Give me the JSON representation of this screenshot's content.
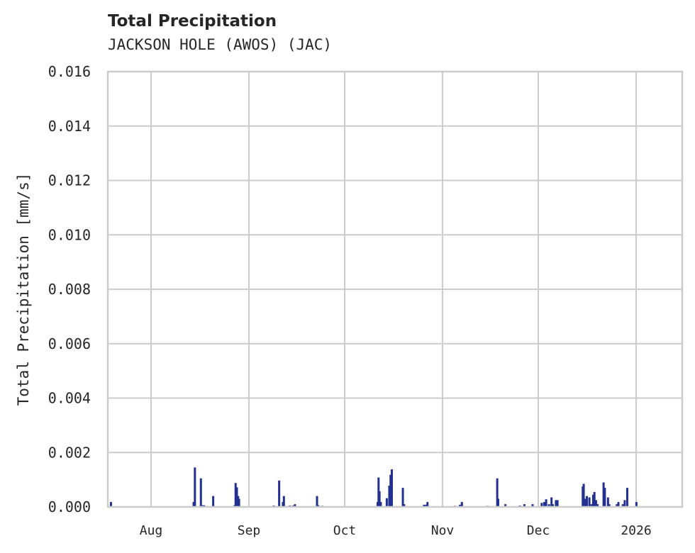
{
  "header": {
    "title": "Total Precipitation",
    "subtitle": "JACKSON HOLE (AWOS) (JAC)"
  },
  "chart_data": {
    "type": "bar",
    "title": "Total Precipitation",
    "subtitle": "JACKSON HOLE (AWOS) (JAC)",
    "xlabel": "",
    "ylabel": "Total Precipitation [mm/s]",
    "ylim": [
      0,
      0.016
    ],
    "yticks": [
      "0.000",
      "0.002",
      "0.004",
      "0.006",
      "0.008",
      "0.010",
      "0.012",
      "0.014",
      "0.016"
    ],
    "xticks": [
      "Aug",
      "Sep",
      "Oct",
      "Nov",
      "Dec",
      "2026"
    ],
    "grid": true,
    "legend": "none",
    "color": "#22318f",
    "x_unit": "days since Jul 18, 2025 (approx.)",
    "series": [
      {
        "name": "Total Precipitation",
        "points": [
          {
            "day": 1.0,
            "value": 0.00018
          },
          {
            "day": 27.2,
            "value": 0.00018
          },
          {
            "day": 27.6,
            "value": 0.00145
          },
          {
            "day": 29.5,
            "value": 0.00105
          },
          {
            "day": 30.0,
            "value": 6e-05
          },
          {
            "day": 30.5,
            "value": 6e-05
          },
          {
            "day": 33.4,
            "value": 0.0004
          },
          {
            "day": 40.2,
            "value": 6e-05
          },
          {
            "day": 40.5,
            "value": 0.00088
          },
          {
            "day": 40.9,
            "value": 0.00072
          },
          {
            "day": 41.3,
            "value": 0.0004
          },
          {
            "day": 41.6,
            "value": 0.0003
          },
          {
            "day": 52.6,
            "value": 5e-05
          },
          {
            "day": 54.3,
            "value": 0.00097
          },
          {
            "day": 55.5,
            "value": 0.00018
          },
          {
            "day": 55.8,
            "value": 0.0004
          },
          {
            "day": 57.7,
            "value": 5e-05
          },
          {
            "day": 58.7,
            "value": 5e-05
          },
          {
            "day": 59.3,
            "value": 0.0001
          },
          {
            "day": 66.3,
            "value": 0.0004
          },
          {
            "day": 66.7,
            "value": 6e-05
          },
          {
            "day": 68.0,
            "value": 4e-05
          },
          {
            "day": 85.5,
            "value": 0.00018
          },
          {
            "day": 85.8,
            "value": 0.00108
          },
          {
            "day": 86.1,
            "value": 0.00058
          },
          {
            "day": 86.5,
            "value": 0.00018
          },
          {
            "day": 88.4,
            "value": 0.00032
          },
          {
            "day": 89.2,
            "value": 0.00078
          },
          {
            "day": 89.6,
            "value": 0.00118
          },
          {
            "day": 90.0,
            "value": 0.00138
          },
          {
            "day": 93.5,
            "value": 0.0007
          },
          {
            "day": 93.9,
            "value": 0.0001
          },
          {
            "day": 100.2,
            "value": 8e-05
          },
          {
            "day": 100.8,
            "value": 8e-05
          },
          {
            "day": 101.3,
            "value": 0.00018
          },
          {
            "day": 110.0,
            "value": 4e-05
          },
          {
            "day": 111.6,
            "value": 8e-05
          },
          {
            "day": 112.2,
            "value": 0.00018
          },
          {
            "day": 120.3,
            "value": 4e-05
          },
          {
            "day": 123.4,
            "value": 0.00105
          },
          {
            "day": 123.7,
            "value": 0.0003
          },
          {
            "day": 126.0,
            "value": 0.0001
          },
          {
            "day": 130.6,
            "value": 5e-05
          },
          {
            "day": 132.0,
            "value": 0.0001
          },
          {
            "day": 134.6,
            "value": 0.0001
          },
          {
            "day": 137.5,
            "value": 0.00015
          },
          {
            "day": 138.3,
            "value": 0.00018
          },
          {
            "day": 138.9,
            "value": 0.00028
          },
          {
            "day": 139.8,
            "value": 0.0001
          },
          {
            "day": 140.6,
            "value": 0.00035
          },
          {
            "day": 141.0,
            "value": 0.0001
          },
          {
            "day": 142.0,
            "value": 0.00025
          },
          {
            "day": 142.5,
            "value": 0.00025
          },
          {
            "day": 150.5,
            "value": 0.00075
          },
          {
            "day": 150.8,
            "value": 0.00085
          },
          {
            "day": 151.4,
            "value": 0.0003
          },
          {
            "day": 151.8,
            "value": 0.0004
          },
          {
            "day": 152.6,
            "value": 0.00035
          },
          {
            "day": 153.3,
            "value": 0.0001
          },
          {
            "day": 153.8,
            "value": 0.00045
          },
          {
            "day": 154.2,
            "value": 0.00055
          },
          {
            "day": 154.7,
            "value": 0.00025
          },
          {
            "day": 155.2,
            "value": 0.0001
          },
          {
            "day": 157.1,
            "value": 0.0009
          },
          {
            "day": 157.5,
            "value": 0.0007
          },
          {
            "day": 158.5,
            "value": 0.00035
          },
          {
            "day": 158.9,
            "value": 0.0001
          },
          {
            "day": 161.3,
            "value": 0.0001
          },
          {
            "day": 161.8,
            "value": 0.00018
          },
          {
            "day": 163.2,
            "value": 0.0001
          },
          {
            "day": 163.8,
            "value": 0.00025
          },
          {
            "day": 164.6,
            "value": 0.0007
          },
          {
            "day": 167.5,
            "value": 0.00018
          }
        ]
      }
    ]
  }
}
